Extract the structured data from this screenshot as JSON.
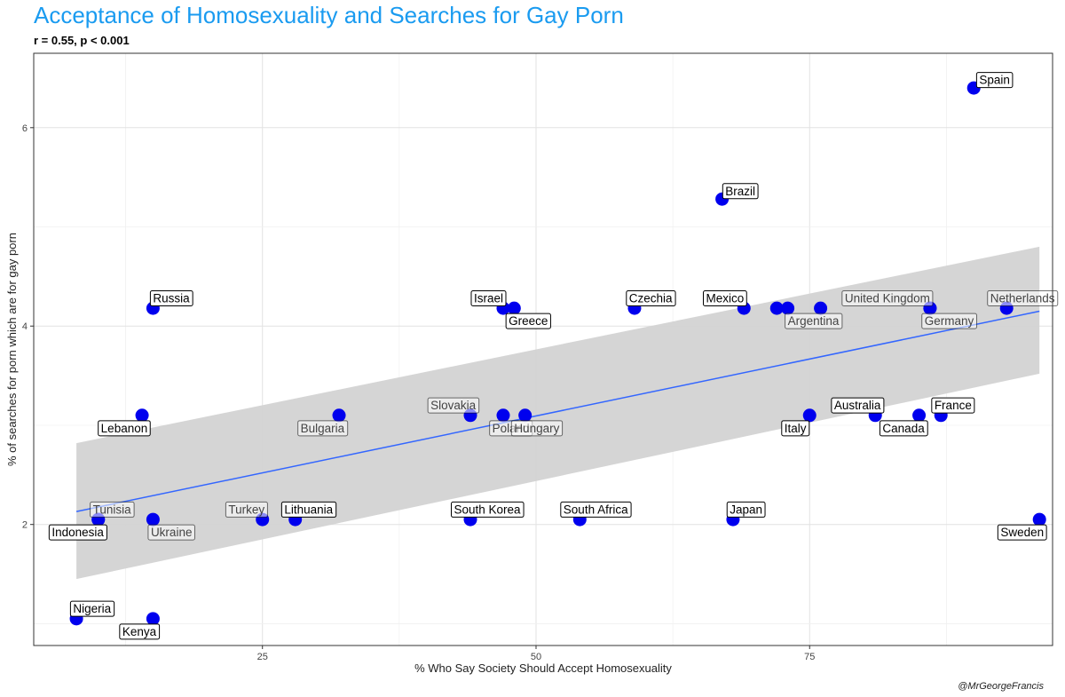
{
  "title": "Acceptance of Homosexuality and Searches for Gay Porn",
  "subtitle": "r = 0.55, p < 0.001",
  "caption": "@MrGeorgeFrancis",
  "chart_data": {
    "type": "scatter",
    "title": "Acceptance of Homosexuality and Searches for Gay Porn",
    "subtitle": "r = 0.55, p < 0.001",
    "xlabel": "% Who Say Society Should Accept Homosexuality",
    "ylabel": "% of searches for porn which are for gay porn",
    "xlim": [
      4.1,
      97.2
    ],
    "ylim": [
      0.78,
      6.75
    ],
    "xticks": [
      25,
      50,
      75
    ],
    "yticks": [
      2,
      4,
      6
    ],
    "grid": true,
    "point_color": "#0000ee",
    "line_color": "#3366ff",
    "band_color": "#d3d3d3",
    "trend": {
      "x": [
        8,
        96
      ],
      "y": [
        2.13,
        4.15
      ],
      "lower": [
        1.45,
        3.52
      ],
      "upper": [
        2.82,
        4.8
      ]
    },
    "points": [
      {
        "label": "Spain",
        "x": 90,
        "y": 6.4,
        "dx": 0.5,
        "dy": 0.08,
        "anchor": "start",
        "dim": false
      },
      {
        "label": "Brazil",
        "x": 67,
        "y": 5.28,
        "dx": 0.3,
        "dy": 0.08,
        "anchor": "start",
        "dim": false
      },
      {
        "label": "Russia",
        "x": 15,
        "y": 4.18,
        "dx": 0,
        "dy": 0.1,
        "anchor": "start",
        "dim": false
      },
      {
        "label": "Israel",
        "x": 47,
        "y": 4.18,
        "dx": 0,
        "dy": 0.1,
        "anchor": "end",
        "dim": false
      },
      {
        "label": "Greece",
        "x": 48,
        "y": 4.18,
        "dx": -0.5,
        "dy": -0.13,
        "anchor": "start",
        "dim": false
      },
      {
        "label": "Czechia",
        "x": 59,
        "y": 4.18,
        "dx": -0.5,
        "dy": 0.1,
        "anchor": "start",
        "dim": false
      },
      {
        "label": "Mexico",
        "x": 69,
        "y": 4.18,
        "dx": 0,
        "dy": 0.1,
        "anchor": "end",
        "dim": false
      },
      {
        "label": "Argentina",
        "x": 73,
        "y": 4.18,
        "dx": 0,
        "dy": -0.13,
        "anchor": "start",
        "dim": true
      },
      {
        "label": "",
        "x": 72,
        "y": 4.18,
        "dx": 0,
        "dy": 0,
        "anchor": "start",
        "dim": false
      },
      {
        "label": "",
        "x": 76,
        "y": 4.18,
        "dx": 0,
        "dy": 0,
        "anchor": "start",
        "dim": false
      },
      {
        "label": "United Kingdom",
        "x": 86,
        "y": 4.18,
        "dx": 0,
        "dy": 0.1,
        "anchor": "end",
        "dim": true
      },
      {
        "label": "Germany",
        "x": 86,
        "y": 4.18,
        "dx": -0.5,
        "dy": -0.13,
        "anchor": "start",
        "dim": true
      },
      {
        "label": "Netherlands",
        "x": 93,
        "y": 4.18,
        "dx": -1.5,
        "dy": 0.1,
        "anchor": "start",
        "dim": true
      },
      {
        "label": "Lebanon",
        "x": 14,
        "y": 3.1,
        "dx": 0.5,
        "dy": -0.13,
        "anchor": "end",
        "dim": false
      },
      {
        "label": "Bulgaria",
        "x": 32,
        "y": 3.1,
        "dx": 0.5,
        "dy": -0.13,
        "anchor": "end",
        "dim": true
      },
      {
        "label": "Slovakia",
        "x": 44,
        "y": 3.1,
        "dx": 0.5,
        "dy": 0.1,
        "anchor": "end",
        "dim": true
      },
      {
        "label": "Poland",
        "x": 47,
        "y": 3.1,
        "dx": -1.0,
        "dy": -0.13,
        "anchor": "start",
        "dim": true
      },
      {
        "label": "Hungary",
        "x": 49,
        "y": 3.1,
        "dx": -1.0,
        "dy": -0.13,
        "anchor": "start",
        "dim": true
      },
      {
        "label": "Italy",
        "x": 75,
        "y": 3.1,
        "dx": -0.3,
        "dy": -0.13,
        "anchor": "end",
        "dim": false
      },
      {
        "label": "Australia",
        "x": 81,
        "y": 3.1,
        "dx": 0.5,
        "dy": 0.1,
        "anchor": "end",
        "dim": false
      },
      {
        "label": "Canada",
        "x": 85,
        "y": 3.1,
        "dx": 0.5,
        "dy": -0.13,
        "anchor": "end",
        "dim": false
      },
      {
        "label": "France",
        "x": 87,
        "y": 3.1,
        "dx": -0.6,
        "dy": 0.1,
        "anchor": "start",
        "dim": false
      },
      {
        "label": "Tunisia",
        "x": 10,
        "y": 2.05,
        "dx": -0.5,
        "dy": 0.1,
        "anchor": "start",
        "dim": true
      },
      {
        "label": "Indonesia",
        "x": 10,
        "y": 2.05,
        "dx": 0.5,
        "dy": -0.13,
        "anchor": "end",
        "dim": false
      },
      {
        "label": "Ukraine",
        "x": 15,
        "y": 2.05,
        "dx": -0.2,
        "dy": -0.13,
        "anchor": "start",
        "dim": true
      },
      {
        "label": "Turkey",
        "x": 25,
        "y": 2.05,
        "dx": 0.2,
        "dy": 0.1,
        "anchor": "end",
        "dim": true
      },
      {
        "label": "Lithuania",
        "x": 28,
        "y": 2.05,
        "dx": -1.0,
        "dy": 0.1,
        "anchor": "start",
        "dim": false
      },
      {
        "label": "South Korea",
        "x": 44,
        "y": 2.05,
        "dx": -1.5,
        "dy": 0.1,
        "anchor": "start",
        "dim": false
      },
      {
        "label": "South Africa",
        "x": 54,
        "y": 2.05,
        "dx": -1.5,
        "dy": 0.1,
        "anchor": "start",
        "dim": false
      },
      {
        "label": "Japan",
        "x": 68,
        "y": 2.05,
        "dx": -0.3,
        "dy": 0.1,
        "anchor": "start",
        "dim": false
      },
      {
        "label": "Sweden",
        "x": 96,
        "y": 2.05,
        "dx": 0.4,
        "dy": -0.13,
        "anchor": "end",
        "dim": false
      },
      {
        "label": "Nigeria",
        "x": 8,
        "y": 1.05,
        "dx": -0.3,
        "dy": 0.1,
        "anchor": "start",
        "dim": false
      },
      {
        "label": "Kenya",
        "x": 15,
        "y": 1.05,
        "dx": 0.3,
        "dy": -0.13,
        "anchor": "end",
        "dim": false
      }
    ]
  }
}
